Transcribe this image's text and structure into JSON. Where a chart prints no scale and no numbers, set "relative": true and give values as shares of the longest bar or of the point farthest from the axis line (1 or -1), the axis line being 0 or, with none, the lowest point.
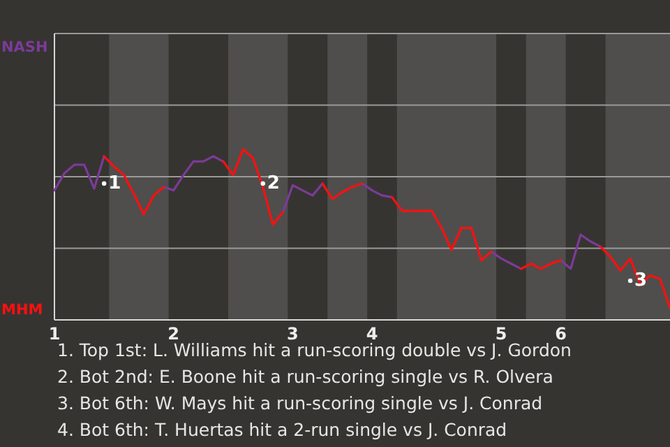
{
  "chart_data": {
    "type": "line",
    "relative": true,
    "categories": [
      "1",
      null,
      null,
      null,
      null,
      null,
      null,
      null,
      null,
      null,
      null,
      null,
      "2",
      null,
      null,
      null,
      null,
      null,
      null,
      null,
      null,
      null,
      null,
      null,
      "3",
      null,
      null,
      null,
      null,
      null,
      null,
      null,
      "4",
      null,
      null,
      null,
      null,
      null,
      null,
      null,
      null,
      null,
      null,
      null,
      null,
      "5",
      null,
      null,
      null,
      null,
      null,
      "6",
      null,
      null,
      null,
      null,
      null,
      null,
      null,
      null,
      null,
      null,
      null
    ],
    "tick_labels": "x",
    "legend": false,
    "marker": "none",
    "line_style": "solid",
    "ref_lines": [
      {
        "axis": "y",
        "value": 0.42,
        "color": "#9a9a9a"
      },
      {
        "axis": "y",
        "value": 0.84,
        "color": "#9a9a9a"
      },
      {
        "axis": "y",
        "value": 1.26,
        "color": "#9a9a9a"
      },
      {
        "axis": "y",
        "value": 1.68,
        "color": "#9a9a9a"
      }
    ],
    "series": [
      {
        "name": "NASH",
        "color": "#7b3b9a",
        "values": [
          0.76,
          0.86,
          0.91,
          0.91,
          0.77,
          0.96,
          null,
          null,
          null,
          null,
          null,
          0.78,
          0.76,
          0.85,
          0.93,
          0.93,
          0.96,
          0.93,
          null,
          null,
          null,
          null,
          null,
          0.63,
          0.79,
          0.76,
          0.73,
          0.8,
          null,
          null,
          null,
          0.8,
          0.76,
          0.73,
          0.72,
          null,
          null,
          null,
          null,
          null,
          null,
          null,
          null,
          null,
          0.4,
          0.36,
          0.33,
          0.3,
          null,
          null,
          null,
          0.35,
          0.3,
          0.5,
          0.46,
          0.43,
          null,
          null,
          null,
          null,
          null,
          null,
          null
        ]
      },
      {
        "name": "MHM",
        "color": "#ff1010",
        "values": [
          null,
          null,
          null,
          null,
          null,
          0.96,
          0.9,
          0.85,
          0.74,
          0.62,
          0.73,
          0.78,
          null,
          null,
          null,
          null,
          null,
          0.93,
          0.85,
          1,
          0.95,
          0.78,
          0.56,
          0.63,
          null,
          null,
          null,
          0.8,
          0.71,
          0.75,
          0.78,
          0.8,
          null,
          null,
          0.72,
          0.64,
          0.64,
          0.64,
          0.64,
          0.54,
          0.41,
          0.54,
          0.54,
          0.35,
          0.4,
          null,
          null,
          0.3,
          0.33,
          0.3,
          0.33,
          0.35,
          null,
          null,
          null,
          0.43,
          0.37,
          0.29,
          0.36,
          0.21,
          0.26,
          0.24,
          0.07
        ]
      },
      {
        "name": "1",
        "type": "scatter",
        "color": "#ffffff",
        "marker": "circle",
        "values": [
          null,
          null,
          null,
          null,
          null,
          0.8,
          null,
          null,
          null,
          null,
          null,
          null,
          null,
          null,
          null,
          null,
          null,
          null,
          null,
          null,
          null,
          null,
          null,
          null,
          null,
          null,
          null,
          null,
          null,
          null,
          null,
          null,
          null,
          null,
          null,
          null,
          null,
          null,
          null,
          null,
          null,
          null,
          null,
          null,
          null,
          null,
          null,
          null,
          null,
          null,
          null,
          null,
          null,
          null,
          null,
          null,
          null,
          null,
          null,
          null,
          null,
          null,
          null
        ]
      },
      {
        "name": "2",
        "type": "scatter",
        "color": "#ffffff",
        "marker": "circle",
        "values": [
          null,
          null,
          null,
          null,
          null,
          null,
          null,
          null,
          null,
          null,
          null,
          null,
          null,
          null,
          null,
          null,
          null,
          null,
          null,
          null,
          null,
          0.8,
          null,
          null,
          null,
          null,
          null,
          null,
          null,
          null,
          null,
          null,
          null,
          null,
          null,
          null,
          null,
          null,
          null,
          null,
          null,
          null,
          null,
          null,
          null,
          null,
          null,
          null,
          null,
          null,
          null,
          null,
          null,
          null,
          null,
          null,
          null,
          null,
          null,
          null,
          null,
          null,
          null
        ]
      },
      {
        "name": "3",
        "type": "scatter",
        "color": "#ffffff",
        "marker": "circle",
        "values": [
          null,
          null,
          null,
          null,
          null,
          null,
          null,
          null,
          null,
          null,
          null,
          null,
          null,
          null,
          null,
          null,
          null,
          null,
          null,
          null,
          null,
          null,
          null,
          null,
          null,
          null,
          null,
          null,
          null,
          null,
          null,
          null,
          null,
          null,
          null,
          null,
          null,
          null,
          null,
          null,
          null,
          null,
          null,
          null,
          null,
          null,
          null,
          null,
          null,
          null,
          null,
          null,
          null,
          null,
          null,
          null,
          null,
          null,
          0.23,
          null,
          null,
          null,
          null
        ]
      }
    ],
    "annotations": [
      "1. Top 1st: L. Williams hit a run-scoring double vs J. Gordon",
      "2. Bot 2nd: E. Boone hit a run-scoring single vs R. Olvera",
      "3. Bot 6th: W. Mays hit a run-scoring single vs J. Conrad",
      "4. Bot 6th: T. Huertas hit a 2-run single vs J. Conrad"
    ]
  }
}
